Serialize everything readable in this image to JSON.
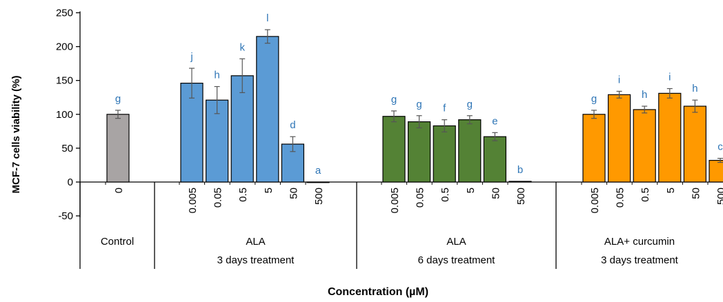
{
  "chart_data": {
    "type": "bar",
    "title": "",
    "xlabel": "Concentration (µM)",
    "ylabel": "MCF-7  cells viability  (%)",
    "ylim": [
      -50,
      250
    ],
    "yticks": [
      250,
      200,
      150,
      100,
      50,
      0,
      -50
    ],
    "grid": false,
    "legend": "none",
    "colors": {
      "control": "#a8a4a4",
      "ala_3d": "#5b9bd5",
      "ala_6d": "#548235",
      "ala_curcumin": "#ff9900",
      "letters": "#2e75b6"
    },
    "groups": [
      {
        "label": "Control",
        "sublabel": "",
        "color_key": "control",
        "bars": [
          {
            "x": "0",
            "value": 100,
            "error": 6,
            "letter": "g"
          }
        ]
      },
      {
        "label": "ALA",
        "sublabel": "3 days treatment",
        "color_key": "ala_3d",
        "bars": [
          {
            "x": "0.005",
            "value": 146,
            "error": 22,
            "letter": "j"
          },
          {
            "x": "0.05",
            "value": 121,
            "error": 20,
            "letter": "h"
          },
          {
            "x": "0.5",
            "value": 157,
            "error": 25,
            "letter": "k"
          },
          {
            "x": "5",
            "value": 215,
            "error": 10,
            "letter": "l"
          },
          {
            "x": "50",
            "value": 56,
            "error": 11,
            "letter": "d"
          },
          {
            "x": "500",
            "value": 0,
            "error": 0,
            "letter": "a"
          }
        ]
      },
      {
        "label": "ALA",
        "sublabel": "6 days treatment",
        "color_key": "ala_6d",
        "bars": [
          {
            "x": "0.005",
            "value": 97,
            "error": 8,
            "letter": "g"
          },
          {
            "x": "0.05",
            "value": 89,
            "error": 9,
            "letter": "g"
          },
          {
            "x": "0.5",
            "value": 83,
            "error": 9,
            "letter": "f"
          },
          {
            "x": "5",
            "value": 92,
            "error": 6,
            "letter": "g"
          },
          {
            "x": "50",
            "value": 67,
            "error": 6,
            "letter": "e"
          },
          {
            "x": "500",
            "value": 1,
            "error": 0,
            "letter": "b"
          }
        ]
      },
      {
        "label": "ALA+  curcumin",
        "sublabel": "3 days treatment",
        "color_key": "ala_curcumin",
        "bars": [
          {
            "x": "0.005",
            "value": 100,
            "error": 6,
            "letter": "g"
          },
          {
            "x": "0.05",
            "value": 129,
            "error": 5,
            "letter": "i"
          },
          {
            "x": "0.5",
            "value": 107,
            "error": 5,
            "letter": "h"
          },
          {
            "x": "5",
            "value": 131,
            "error": 7,
            "letter": "i"
          },
          {
            "x": "50",
            "value": 112,
            "error": 9,
            "letter": "h"
          },
          {
            "x": "500",
            "value": 32,
            "error": 3,
            "letter": "c"
          }
        ]
      }
    ]
  }
}
